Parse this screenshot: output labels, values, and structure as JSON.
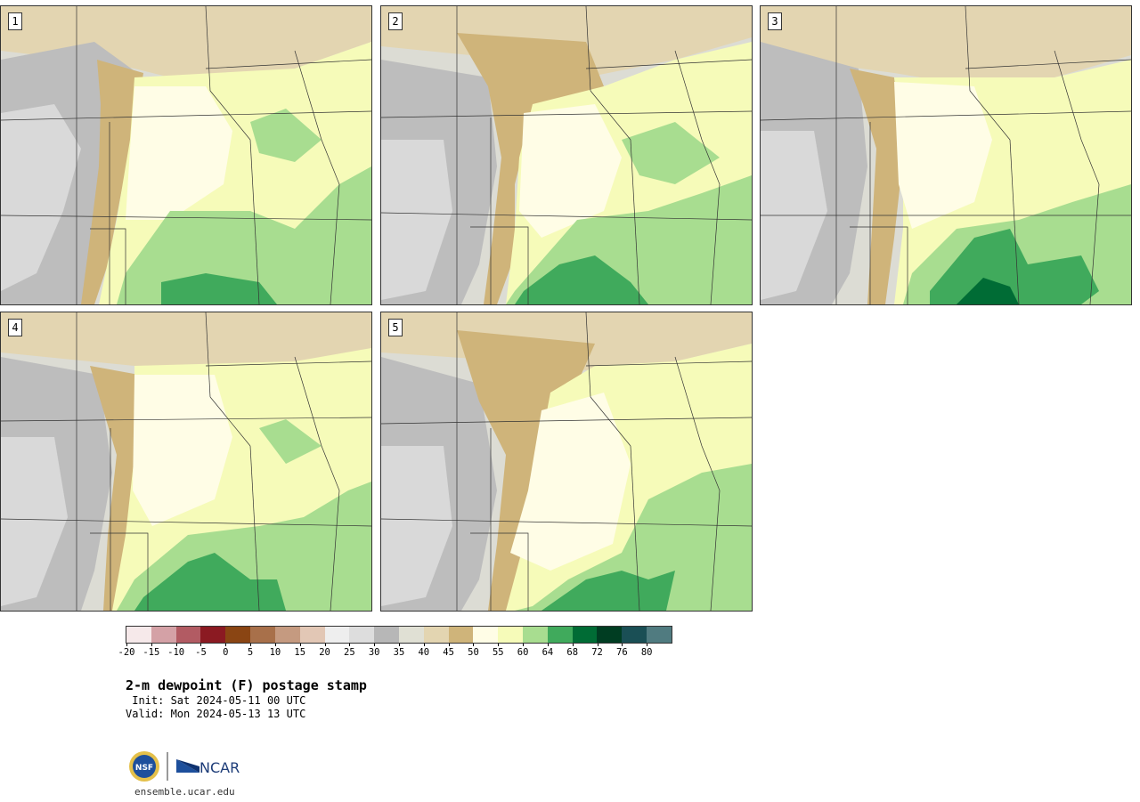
{
  "product": {
    "title": "2-m dewpoint (F) postage stamp",
    "init": " Init: Sat 2024-05-11 00 UTC",
    "valid": "Valid: Mon 2024-05-13 13 UTC"
  },
  "panels": [
    {
      "label": "1"
    },
    {
      "label": "2"
    },
    {
      "label": "3"
    },
    {
      "label": "4"
    },
    {
      "label": "5"
    }
  ],
  "colorbar": {
    "colors": [
      "#f6e9ea",
      "#d4a1a6",
      "#b25b63",
      "#8b1a22",
      "#8a4513",
      "#a8704a",
      "#c59a80",
      "#e2c7b5",
      "#eeeeee",
      "#dddddd",
      "#b7b7b7",
      "#e0e0d4",
      "#e3d5b1",
      "#cfb47a",
      "#fffde6",
      "#f6fbb9",
      "#a8dd90",
      "#40aa5c",
      "#006c35",
      "#003d22",
      "#1a4f55",
      "#507b80"
    ],
    "ticks": [
      "-20",
      "-15",
      "-10",
      "-5",
      "0",
      "5",
      "10",
      "15",
      "20",
      "25",
      "30",
      "35",
      "40",
      "45",
      "50",
      "55",
      "60",
      "64",
      "68",
      "72",
      "76",
      "80"
    ]
  },
  "branding": {
    "nsf": "NSF",
    "ncar": "NCAR",
    "site": "ensemble.ucar.edu"
  }
}
